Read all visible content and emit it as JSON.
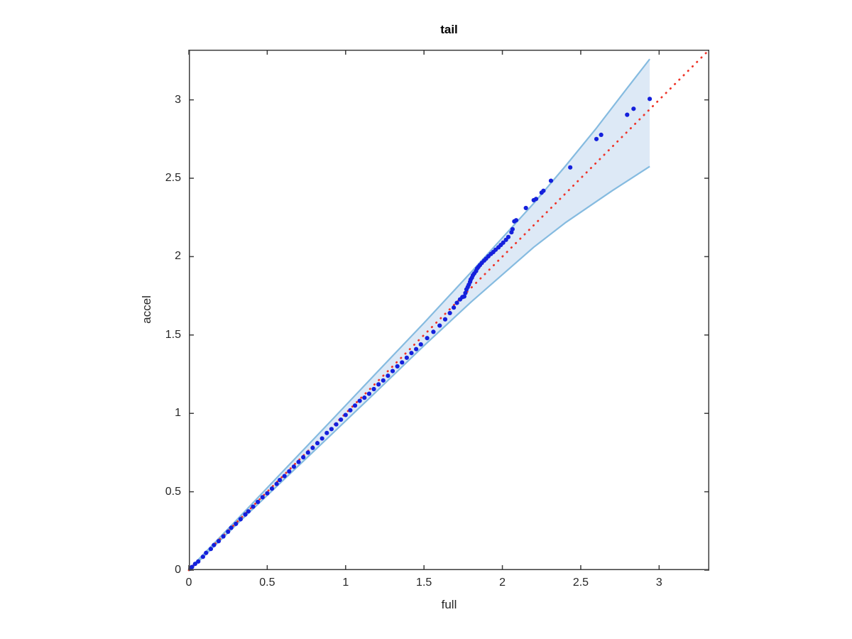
{
  "figure": {
    "title": "tail",
    "xlabel": "full",
    "ylabel": "accel"
  },
  "axes": {
    "xlim": [
      0,
      3.32
    ],
    "ylim": [
      0,
      3.32
    ],
    "xticks": [
      0,
      0.5,
      1,
      1.5,
      2,
      2.5,
      3
    ],
    "yticks": [
      0,
      0.5,
      1,
      1.5,
      2,
      2.5,
      3
    ],
    "xticklabels": [
      "0",
      "0.5",
      "1",
      "1.5",
      "2",
      "2.5",
      "3"
    ],
    "yticklabels": [
      "0",
      "0.5",
      "1",
      "1.5",
      "2",
      "2.5",
      "3"
    ],
    "grid": false,
    "box": true,
    "tick_direction": "in",
    "tick_length": 7,
    "axis_color": "#3c3c3c"
  },
  "colors": {
    "marker": "#1420dc",
    "reference_line": "#ee352a",
    "band_fill": "#dde9f6",
    "band_edge": "#85bbe0",
    "text": "#262626",
    "title": "#000000",
    "background": "#ffffff"
  },
  "chart_data": {
    "type": "scatter",
    "title": "tail",
    "xlabel": "full",
    "ylabel": "accel",
    "xlim": [
      0,
      3.32
    ],
    "ylim": [
      0,
      3.32
    ],
    "grid": false,
    "legend": null,
    "series": [
      {
        "name": "quantile-points",
        "type": "scatter",
        "color": "#1420dc",
        "marker_radius": 3.1,
        "points": [
          [
            0.01,
            0.01
          ],
          [
            0.02,
            0.02
          ],
          [
            0.04,
            0.04
          ],
          [
            0.06,
            0.055
          ],
          [
            0.09,
            0.085
          ],
          [
            0.11,
            0.11
          ],
          [
            0.14,
            0.135
          ],
          [
            0.16,
            0.16
          ],
          [
            0.19,
            0.185
          ],
          [
            0.22,
            0.215
          ],
          [
            0.25,
            0.245
          ],
          [
            0.27,
            0.27
          ],
          [
            0.3,
            0.295
          ],
          [
            0.33,
            0.325
          ],
          [
            0.36,
            0.355
          ],
          [
            0.38,
            0.375
          ],
          [
            0.41,
            0.405
          ],
          [
            0.44,
            0.435
          ],
          [
            0.47,
            0.465
          ],
          [
            0.5,
            0.49
          ],
          [
            0.53,
            0.52
          ],
          [
            0.56,
            0.55
          ],
          [
            0.58,
            0.575
          ],
          [
            0.61,
            0.6
          ],
          [
            0.64,
            0.63
          ],
          [
            0.67,
            0.66
          ],
          [
            0.7,
            0.69
          ],
          [
            0.73,
            0.72
          ],
          [
            0.76,
            0.75
          ],
          [
            0.79,
            0.78
          ],
          [
            0.82,
            0.81
          ],
          [
            0.85,
            0.84
          ],
          [
            0.88,
            0.875
          ],
          [
            0.91,
            0.9
          ],
          [
            0.94,
            0.93
          ],
          [
            0.97,
            0.96
          ],
          [
            1.0,
            0.99
          ],
          [
            1.03,
            1.02
          ],
          [
            1.06,
            1.05
          ],
          [
            1.09,
            1.08
          ],
          [
            1.12,
            1.1
          ],
          [
            1.15,
            1.125
          ],
          [
            1.18,
            1.155
          ],
          [
            1.21,
            1.185
          ],
          [
            1.24,
            1.21
          ],
          [
            1.27,
            1.24
          ],
          [
            1.3,
            1.27
          ],
          [
            1.33,
            1.3
          ],
          [
            1.36,
            1.325
          ],
          [
            1.39,
            1.355
          ],
          [
            1.42,
            1.385
          ],
          [
            1.45,
            1.41
          ],
          [
            1.48,
            1.44
          ],
          [
            1.52,
            1.48
          ],
          [
            1.56,
            1.52
          ],
          [
            1.6,
            1.56
          ],
          [
            1.635,
            1.6
          ],
          [
            1.665,
            1.64
          ],
          [
            1.69,
            1.675
          ],
          [
            1.71,
            1.705
          ],
          [
            1.73,
            1.727
          ],
          [
            1.745,
            1.742
          ],
          [
            1.757,
            1.746
          ],
          [
            1.764,
            1.768
          ],
          [
            1.771,
            1.791
          ],
          [
            1.779,
            1.806
          ],
          [
            1.786,
            1.821
          ],
          [
            1.794,
            1.839
          ],
          [
            1.798,
            1.854
          ],
          [
            1.806,
            1.866
          ],
          [
            1.812,
            1.881
          ],
          [
            1.821,
            1.893
          ],
          [
            1.832,
            1.908
          ],
          [
            1.839,
            1.924
          ],
          [
            1.847,
            1.934
          ],
          [
            1.857,
            1.946
          ],
          [
            1.869,
            1.96
          ],
          [
            1.884,
            1.975
          ],
          [
            1.896,
            1.987
          ],
          [
            1.911,
            2.002
          ],
          [
            1.927,
            2.017
          ],
          [
            1.942,
            2.029
          ],
          [
            1.957,
            2.044
          ],
          [
            1.975,
            2.059
          ],
          [
            1.99,
            2.074
          ],
          [
            2.005,
            2.089
          ],
          [
            2.023,
            2.107
          ],
          [
            2.038,
            2.125
          ],
          [
            2.058,
            2.155
          ],
          [
            2.065,
            2.175
          ],
          [
            2.076,
            2.225
          ],
          [
            2.088,
            2.232
          ],
          [
            2.15,
            2.31
          ],
          [
            2.2,
            2.36
          ],
          [
            2.215,
            2.368
          ],
          [
            2.25,
            2.408
          ],
          [
            2.262,
            2.42
          ],
          [
            2.31,
            2.484
          ],
          [
            2.433,
            2.569
          ],
          [
            2.6,
            2.75
          ],
          [
            2.63,
            2.777
          ],
          [
            2.796,
            2.905
          ],
          [
            2.837,
            2.943
          ],
          [
            2.94,
            3.006
          ]
        ]
      },
      {
        "name": "reference-line",
        "type": "line",
        "style": "dotted",
        "color": "#ee352a",
        "points": [
          [
            0,
            0
          ],
          [
            3.32,
            3.32
          ]
        ]
      },
      {
        "name": "confidence-band",
        "type": "area",
        "fill": "#dde9f6",
        "edge": "#85bbe0",
        "upper": [
          [
            0,
            0.005
          ],
          [
            0.3,
            0.315
          ],
          [
            0.6,
            0.63
          ],
          [
            0.9,
            0.945
          ],
          [
            1.2,
            1.262
          ],
          [
            1.5,
            1.577
          ],
          [
            1.8,
            1.9
          ],
          [
            2.0,
            2.12
          ],
          [
            2.2,
            2.34
          ],
          [
            2.4,
            2.575
          ],
          [
            2.6,
            2.82
          ],
          [
            2.8,
            3.08
          ],
          [
            2.94,
            3.26
          ]
        ],
        "lower": [
          [
            0,
            -0.005
          ],
          [
            0.3,
            0.287
          ],
          [
            0.6,
            0.572
          ],
          [
            0.9,
            0.856
          ],
          [
            1.2,
            1.143
          ],
          [
            1.5,
            1.432
          ],
          [
            1.8,
            1.71
          ],
          [
            2.0,
            1.885
          ],
          [
            2.2,
            2.06
          ],
          [
            2.4,
            2.215
          ],
          [
            2.7,
            2.42
          ],
          [
            2.94,
            2.575
          ]
        ]
      }
    ]
  }
}
